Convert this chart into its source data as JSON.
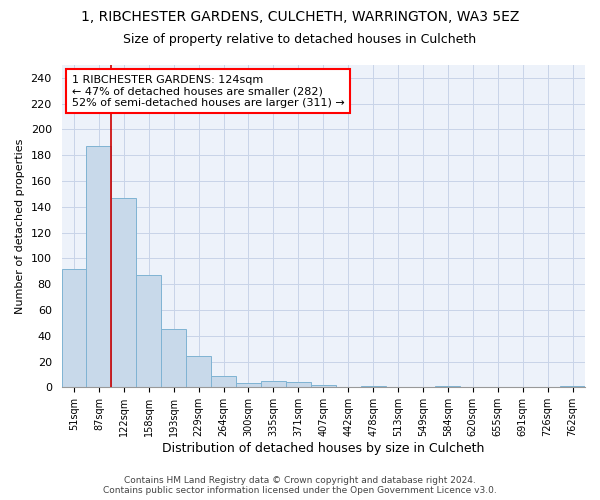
{
  "title_line1": "1, RIBCHESTER GARDENS, CULCHETH, WARRINGTON, WA3 5EZ",
  "title_line2": "Size of property relative to detached houses in Culcheth",
  "xlabel": "Distribution of detached houses by size in Culcheth",
  "ylabel": "Number of detached properties",
  "categories": [
    "51sqm",
    "87sqm",
    "122sqm",
    "158sqm",
    "193sqm",
    "229sqm",
    "264sqm",
    "300sqm",
    "335sqm",
    "371sqm",
    "407sqm",
    "442sqm",
    "478sqm",
    "513sqm",
    "549sqm",
    "584sqm",
    "620sqm",
    "655sqm",
    "691sqm",
    "726sqm",
    "762sqm"
  ],
  "values": [
    92,
    187,
    147,
    87,
    45,
    24,
    9,
    3,
    5,
    4,
    2,
    0,
    1,
    0,
    0,
    1,
    0,
    0,
    0,
    0,
    1
  ],
  "bar_color": "#c8d9ea",
  "bar_edge_color": "#7fb3d3",
  "vline_color": "#cc0000",
  "annotation_text": "1 RIBCHESTER GARDENS: 124sqm\n← 47% of detached houses are smaller (282)\n52% of semi-detached houses are larger (311) →",
  "annotation_box_color": "white",
  "annotation_box_edge": "red",
  "ylim": [
    0,
    250
  ],
  "yticks": [
    0,
    20,
    40,
    60,
    80,
    100,
    120,
    140,
    160,
    180,
    200,
    220,
    240
  ],
  "footnote": "Contains HM Land Registry data © Crown copyright and database right 2024.\nContains public sector information licensed under the Open Government Licence v3.0.",
  "grid_color": "#c8d4e8",
  "background_color": "#edf2fa"
}
